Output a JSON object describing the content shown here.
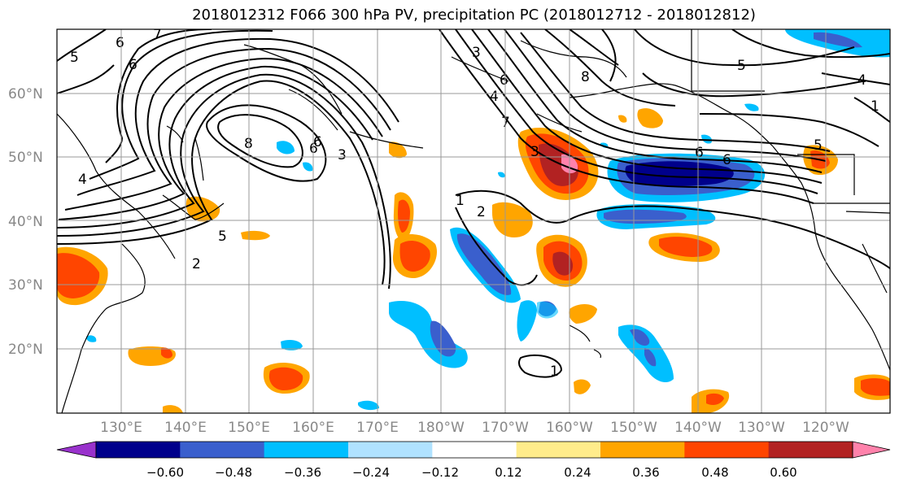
{
  "title": "2018012312 F066 300 hPa PV, precipitation PC (2018012712 - 2018012812)",
  "lat_labels": [
    "60°N",
    "50°N",
    "40°N",
    "30°N",
    "20°N"
  ],
  "lon_labels": [
    "130°E",
    "140°E",
    "150°E",
    "160°E",
    "170°E",
    "180°W",
    "170°W",
    "160°W",
    "150°W",
    "140°W",
    "130°W",
    "120°W"
  ],
  "colorbar": {
    "tick_labels": [
      "−0.60",
      "−0.48",
      "−0.36",
      "−0.24",
      "−0.12",
      "0.12",
      "0.24",
      "0.36",
      "0.48",
      "0.60"
    ],
    "colors": [
      "#9932cc",
      "#00008b",
      "#3a5fcd",
      "#00bfff",
      "#b0e2ff",
      "#ffffff",
      "#ffec8b",
      "#ffa500",
      "#ff4500",
      "#b22222",
      "#ff82ab"
    ]
  },
  "contour_labels": [
    "5",
    "6",
    "6",
    "7",
    "8",
    "6",
    "4",
    "5",
    "2",
    "6",
    "3",
    "1",
    "2",
    "7",
    "6",
    "3",
    "8",
    "4",
    "3",
    "5",
    "6",
    "6",
    "1",
    "5",
    "1",
    "4"
  ],
  "colors": {
    "map_border": "#000000",
    "grid": "#999999"
  }
}
